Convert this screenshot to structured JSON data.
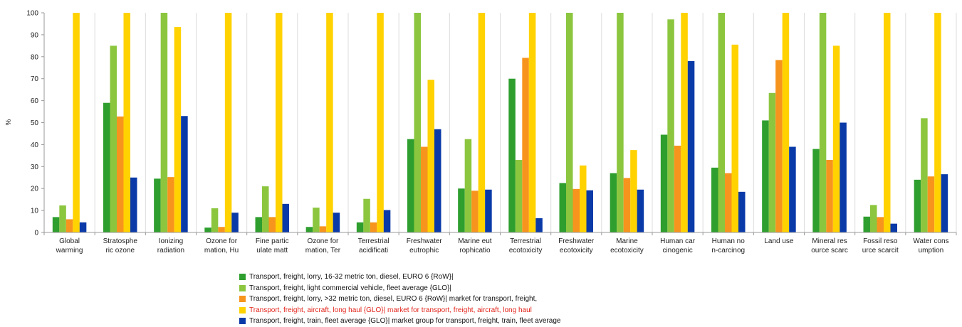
{
  "chart_data": {
    "type": "bar",
    "title": "",
    "xlabel": "",
    "ylabel": "%",
    "ylim": [
      0,
      100
    ],
    "yticks": [
      "0",
      "10",
      "20",
      "30",
      "40",
      "50",
      "60",
      "70",
      "80",
      "90",
      "100"
    ],
    "grid": "vertical lines between categories",
    "legend_position": "bottom",
    "categories": [
      [
        "Global",
        "warming"
      ],
      [
        "Stratosphe",
        "ric ozone"
      ],
      [
        "Ionizing",
        "radiation"
      ],
      [
        "Ozone for",
        "mation, Hu"
      ],
      [
        "Fine partic",
        "ulate matt"
      ],
      [
        "Ozone for",
        "mation, Ter"
      ],
      [
        "Terrestrial",
        "acidificati"
      ],
      [
        "Freshwater",
        "eutrophic"
      ],
      [
        "Marine eut",
        "rophicatio"
      ],
      [
        "Terrestrial",
        "ecotoxicity"
      ],
      [
        "Freshwater",
        "ecotoxicity"
      ],
      [
        "Marine",
        "ecotoxicity"
      ],
      [
        "Human car",
        "cinogenic"
      ],
      [
        "Human no",
        "n-carcinog"
      ],
      [
        "Land use",
        ""
      ],
      [
        "Mineral res",
        "ource scarc"
      ],
      [
        "Fossil reso",
        "urce scarcit"
      ],
      [
        "Water cons",
        "umption"
      ]
    ],
    "series": [
      {
        "name": "Transport, freight, lorry, 16-32 metric ton, diesel, EURO 6 {RoW}|",
        "color": "#2e9e2e",
        "values": [
          7,
          59,
          24.5,
          2.2,
          7,
          2.5,
          4.6,
          42.5,
          20,
          70,
          22.5,
          27,
          44.5,
          29.5,
          51,
          38,
          7.2,
          24
        ]
      },
      {
        "name": "Transport, freight, light commercial vehicle, fleet average {GLO}|",
        "color": "#8cc63f",
        "values": [
          12.3,
          85,
          100,
          11,
          21,
          11.3,
          15.3,
          100,
          42.5,
          33,
          100,
          100,
          97,
          100,
          63.5,
          100,
          12.5,
          52
        ]
      },
      {
        "name": "Transport, freight, lorry, >32 metric ton, diesel, EURO 6 {RoW}| market for transport, freight,",
        "color": "#f7941d",
        "values": [
          6,
          52.8,
          25.2,
          2.5,
          7,
          2.8,
          4.6,
          39,
          19,
          79.5,
          19.8,
          24.8,
          39.5,
          27,
          78.5,
          33,
          7,
          25.5
        ]
      },
      {
        "name": "Transport, freight, aircraft, long haul {GLO}| market for transport, freight, aircraft, long haul",
        "color": "#ffd200",
        "values": [
          100,
          100,
          93.5,
          100,
          100,
          100,
          100,
          69.5,
          100,
          100,
          30.5,
          37.5,
          100,
          85.5,
          100,
          85,
          100,
          100
        ]
      },
      {
        "name": "Transport, freight, train, fleet average {GLO}| market group for transport, freight, train, fleet average",
        "color": "#0a3aa8",
        "values": [
          4.6,
          25,
          53,
          9,
          13,
          9,
          10.2,
          47,
          19.5,
          6.5,
          19.2,
          19.5,
          78,
          18.5,
          39,
          50,
          4,
          26.5
        ]
      }
    ],
    "highlighted_legend_entry": 3
  }
}
